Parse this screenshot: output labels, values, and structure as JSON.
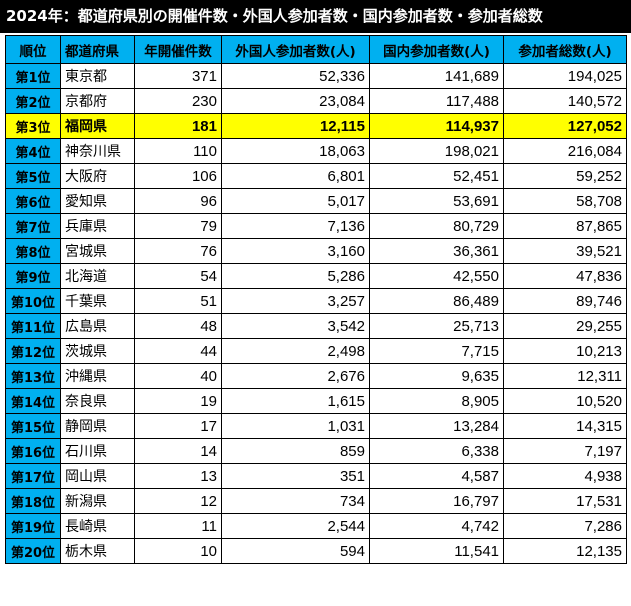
{
  "title": "2024年：都道府県別の開催件数・外国人参加者数・国内参加者数・参加者総数",
  "colors": {
    "header_bg": "#00b0f0",
    "highlight_bg": "#ffff00",
    "title_bg": "#000000"
  },
  "table": {
    "headers": [
      "順位",
      "都道府県",
      "年開催件数",
      "外国人参加者数(人)",
      "国内参加者数(人)",
      "参加者総数(人)"
    ],
    "rows": [
      {
        "rank": "第1位",
        "pref": "東京都",
        "events": "371",
        "foreign": "52,336",
        "domestic": "141,689",
        "total": "194,025"
      },
      {
        "rank": "第2位",
        "pref": "京都府",
        "events": "230",
        "foreign": "23,084",
        "domestic": "117,488",
        "total": "140,572"
      },
      {
        "rank": "第3位",
        "pref": "福岡県",
        "events": "181",
        "foreign": "12,115",
        "domestic": "114,937",
        "total": "127,052"
      },
      {
        "rank": "第4位",
        "pref": "神奈川県",
        "events": "110",
        "foreign": "18,063",
        "domestic": "198,021",
        "total": "216,084"
      },
      {
        "rank": "第5位",
        "pref": "大阪府",
        "events": "106",
        "foreign": "6,801",
        "domestic": "52,451",
        "total": "59,252"
      },
      {
        "rank": "第6位",
        "pref": "愛知県",
        "events": "96",
        "foreign": "5,017",
        "domestic": "53,691",
        "total": "58,708"
      },
      {
        "rank": "第7位",
        "pref": "兵庫県",
        "events": "79",
        "foreign": "7,136",
        "domestic": "80,729",
        "total": "87,865"
      },
      {
        "rank": "第8位",
        "pref": "宮城県",
        "events": "76",
        "foreign": "3,160",
        "domestic": "36,361",
        "total": "39,521"
      },
      {
        "rank": "第9位",
        "pref": "北海道",
        "events": "54",
        "foreign": "5,286",
        "domestic": "42,550",
        "total": "47,836"
      },
      {
        "rank": "第10位",
        "pref": "千葉県",
        "events": "51",
        "foreign": "3,257",
        "domestic": "86,489",
        "total": "89,746"
      },
      {
        "rank": "第11位",
        "pref": "広島県",
        "events": "48",
        "foreign": "3,542",
        "domestic": "25,713",
        "total": "29,255"
      },
      {
        "rank": "第12位",
        "pref": "茨城県",
        "events": "44",
        "foreign": "2,498",
        "domestic": "7,715",
        "total": "10,213"
      },
      {
        "rank": "第13位",
        "pref": "沖縄県",
        "events": "40",
        "foreign": "2,676",
        "domestic": "9,635",
        "total": "12,311"
      },
      {
        "rank": "第14位",
        "pref": "奈良県",
        "events": "19",
        "foreign": "1,615",
        "domestic": "8,905",
        "total": "10,520"
      },
      {
        "rank": "第15位",
        "pref": "静岡県",
        "events": "17",
        "foreign": "1,031",
        "domestic": "13,284",
        "total": "14,315"
      },
      {
        "rank": "第16位",
        "pref": "石川県",
        "events": "14",
        "foreign": "859",
        "domestic": "6,338",
        "total": "7,197"
      },
      {
        "rank": "第17位",
        "pref": "岡山県",
        "events": "13",
        "foreign": "351",
        "domestic": "4,587",
        "total": "4,938"
      },
      {
        "rank": "第18位",
        "pref": "新潟県",
        "events": "12",
        "foreign": "734",
        "domestic": "16,797",
        "total": "17,531"
      },
      {
        "rank": "第19位",
        "pref": "長崎県",
        "events": "11",
        "foreign": "2,544",
        "domestic": "4,742",
        "total": "7,286"
      },
      {
        "rank": "第20位",
        "pref": "栃木県",
        "events": "10",
        "foreign": "594",
        "domestic": "11,541",
        "total": "12,135"
      }
    ],
    "highlight_rank": "第3位"
  }
}
